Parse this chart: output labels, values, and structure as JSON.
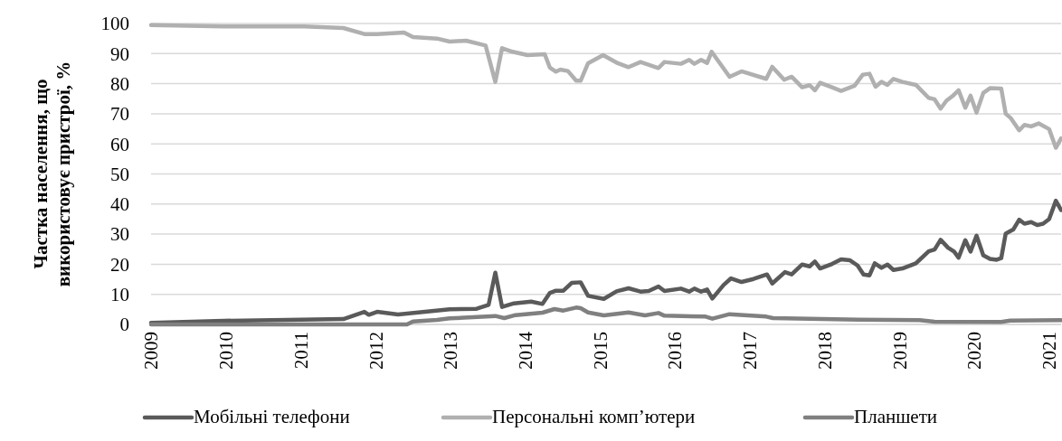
{
  "chart_data": {
    "type": "line",
    "ylabel": "Частка населення, що використовує пристрої, %",
    "xlim": [
      2009,
      2021.16
    ],
    "xticks": [
      2009,
      2010,
      2011,
      2012,
      2013,
      2014,
      2015,
      2016,
      2017,
      2018,
      2019,
      2020,
      2021
    ],
    "ylim": [
      0,
      100
    ],
    "yticks": [
      0,
      10,
      20,
      30,
      40,
      50,
      60,
      70,
      80,
      90,
      100
    ],
    "grid": "y",
    "legend": "bottom",
    "marker": "none",
    "line_style": "solid",
    "series": [
      {
        "name": "Мобільні телефони",
        "color": "#5a5a5a",
        "x": [
          2009,
          2009.97,
          2011.57,
          2011.85,
          2011.91,
          2012.02,
          2012.3,
          2012.99,
          2013.35,
          2013.51,
          2013.6,
          2013.69,
          2013.85,
          2014.08,
          2014.23,
          2014.33,
          2014.41,
          2014.51,
          2014.62,
          2014.74,
          2014.84,
          2015.05,
          2015.22,
          2015.38,
          2015.54,
          2015.65,
          2015.78,
          2015.86,
          2016.08,
          2016.19,
          2016.26,
          2016.35,
          2016.43,
          2016.5,
          2016.65,
          2016.75,
          2016.89,
          2017.05,
          2017.23,
          2017.3,
          2017.47,
          2017.56,
          2017.7,
          2017.8,
          2017.87,
          2017.94,
          2018.1,
          2018.22,
          2018.34,
          2018.44,
          2018.52,
          2018.6,
          2018.67,
          2018.76,
          2018.84,
          2018.92,
          2019.04,
          2019.22,
          2019.39,
          2019.47,
          2019.55,
          2019.65,
          2019.73,
          2019.79,
          2019.88,
          2019.95,
          2020.03,
          2020.12,
          2020.21,
          2020.3,
          2020.36,
          2020.42,
          2020.52,
          2020.6,
          2020.67,
          2020.76,
          2020.84,
          2020.92,
          2021,
          2021.09,
          2021.16
        ],
        "values": [
          0.5,
          1.2,
          1.8,
          4.2,
          3.2,
          4.2,
          3.3,
          5,
          5.2,
          6.5,
          17.2,
          5.8,
          7,
          7.6,
          6.8,
          10.5,
          11.2,
          11.2,
          13.8,
          14,
          9.5,
          8.5,
          11,
          12,
          10.9,
          11.1,
          12.6,
          11.1,
          11.9,
          10.9,
          11.9,
          10.9,
          11.6,
          8.6,
          13.1,
          15.3,
          14.1,
          15.1,
          16.6,
          13.6,
          17.4,
          16.6,
          19.9,
          19.3,
          20.9,
          18.6,
          20.1,
          21.6,
          21.3,
          19.6,
          16.6,
          16.3,
          20.3,
          18.8,
          19.9,
          18.1,
          18.6,
          20.3,
          24.3,
          24.9,
          28.1,
          25.5,
          24.2,
          22.2,
          28,
          24.2,
          29.5,
          23,
          21.8,
          21.5,
          22,
          30.2,
          31.5,
          34.8,
          33.5,
          34,
          33,
          33.5,
          35,
          41.1,
          38
        ]
      },
      {
        "name": "Персональні комп’ютери",
        "color": "#b0b0b0",
        "x": [
          2009,
          2009.97,
          2011.05,
          2011.57,
          2011.85,
          2012.02,
          2012.38,
          2012.5,
          2012.82,
          2012.99,
          2013.21,
          2013.47,
          2013.6,
          2013.69,
          2013.83,
          2014.03,
          2014.26,
          2014.33,
          2014.41,
          2014.47,
          2014.57,
          2014.68,
          2014.74,
          2014.84,
          2015.04,
          2015.22,
          2015.38,
          2015.54,
          2015.78,
          2015.86,
          2016.08,
          2016.19,
          2016.26,
          2016.35,
          2016.43,
          2016.49,
          2016.73,
          2016.89,
          2017.22,
          2017.3,
          2017.46,
          2017.56,
          2017.7,
          2017.8,
          2017.87,
          2017.94,
          2018.1,
          2018.22,
          2018.4,
          2018.51,
          2018.6,
          2018.68,
          2018.76,
          2018.84,
          2018.92,
          2019.04,
          2019.22,
          2019.39,
          2019.47,
          2019.55,
          2019.63,
          2019.71,
          2019.79,
          2019.88,
          2019.95,
          2020.03,
          2020.12,
          2020.21,
          2020.36,
          2020.42,
          2020.49,
          2020.6,
          2020.67,
          2020.76,
          2020.86,
          2021,
          2021.09,
          2021.16
        ],
        "values": [
          99.5,
          99,
          99,
          98.5,
          96.5,
          96.5,
          97,
          95.5,
          95,
          94,
          94.3,
          92.7,
          80.6,
          91.8,
          90.6,
          89.5,
          89.8,
          85.3,
          84,
          84.7,
          84.2,
          81,
          81,
          86.8,
          89.5,
          87,
          85.5,
          87.2,
          85.2,
          87.2,
          86.6,
          87.9,
          86.6,
          87.9,
          86.9,
          90.6,
          82.3,
          84.1,
          81.6,
          85.6,
          81.3,
          82.3,
          78.8,
          79.5,
          77.8,
          80.3,
          78.8,
          77.6,
          79.3,
          83,
          83.3,
          79,
          80.6,
          79.6,
          81.6,
          80.6,
          79.6,
          75.3,
          74.8,
          71.7,
          74.4,
          75.9,
          77.8,
          72,
          76,
          70.4,
          76.9,
          78.5,
          78.4,
          70,
          68.5,
          64.5,
          66.3,
          65.8,
          66.8,
          64.9,
          58.7,
          61.8
        ]
      },
      {
        "name": "Планшети",
        "color": "#808080",
        "x": [
          2009,
          2012.42,
          2012.5,
          2012.82,
          2012.99,
          2013.6,
          2013.72,
          2013.87,
          2014.23,
          2014.39,
          2014.51,
          2014.68,
          2014.74,
          2014.84,
          2015.05,
          2015.38,
          2015.6,
          2015.78,
          2015.86,
          2016.41,
          2016.5,
          2016.73,
          2017.22,
          2017.31,
          2018.46,
          2019.27,
          2019.47,
          2020.36,
          2020.48,
          2021.16
        ],
        "values": [
          0,
          0,
          1,
          1.5,
          2,
          2.8,
          2.1,
          3.1,
          3.9,
          5.1,
          4.6,
          5.6,
          5.4,
          4,
          3,
          4,
          3,
          3.8,
          2.9,
          2.6,
          1.9,
          3.4,
          2.6,
          2.1,
          1.6,
          1.4,
          0.9,
          0.8,
          1.3,
          1.4
        ]
      }
    ]
  }
}
